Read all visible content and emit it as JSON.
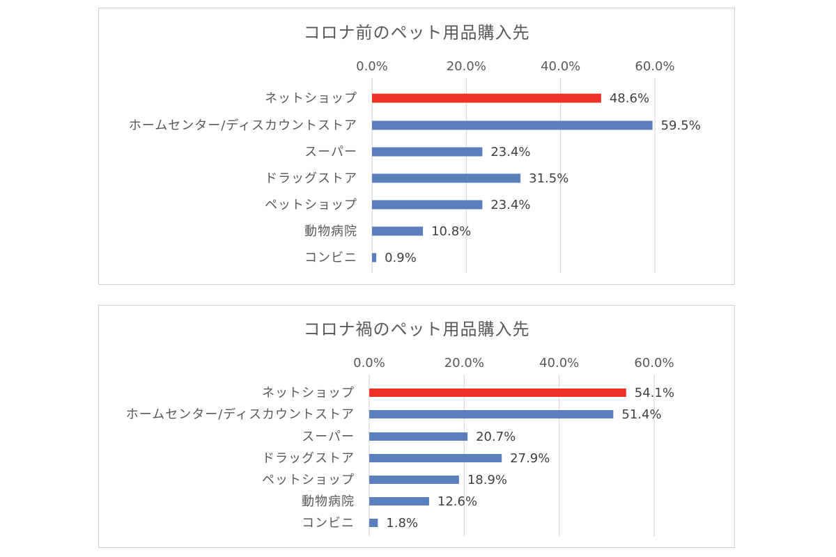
{
  "colors": {
    "highlight": "#ee3124",
    "bar": "#5b7fbd"
  },
  "chart_data": [
    {
      "type": "bar",
      "orientation": "horizontal",
      "title": "コロナ前のペット用品購入先",
      "categories": [
        "ネットショップ",
        "ホームセンター/ディスカウントストア",
        "スーパー",
        "ドラッグストア",
        "ペットショップ",
        "動物病院",
        "コンビニ"
      ],
      "values": [
        48.6,
        59.5,
        23.4,
        31.5,
        23.4,
        10.8,
        0.9
      ],
      "value_labels": [
        "48.6%",
        "59.5%",
        "23.4%",
        "31.5%",
        "23.4%",
        "10.8%",
        "0.9%"
      ],
      "highlight_index": 0,
      "xlim": [
        0,
        60
      ],
      "xticks": [
        0,
        20,
        40,
        60
      ],
      "xtick_labels": [
        "0.0%",
        "20.0%",
        "40.0%",
        "60.0%"
      ],
      "grid": true,
      "xlabel": "",
      "ylabel": ""
    },
    {
      "type": "bar",
      "orientation": "horizontal",
      "title": "コロナ禍のペット用品購入先",
      "categories": [
        "ネットショップ",
        "ホームセンター/ディスカウントストア",
        "スーパー",
        "ドラッグストア",
        "ペットショップ",
        "動物病院",
        "コンビニ"
      ],
      "values": [
        54.1,
        51.4,
        20.7,
        27.9,
        18.9,
        12.6,
        1.8
      ],
      "value_labels": [
        "54.1%",
        "51.4%",
        "20.7%",
        "27.9%",
        "18.9%",
        "12.6%",
        "1.8%"
      ],
      "highlight_index": 0,
      "xlim": [
        0,
        60
      ],
      "xticks": [
        0,
        20,
        40,
        60
      ],
      "xtick_labels": [
        "0.0%",
        "20.0%",
        "40.0%",
        "60.0%"
      ],
      "grid": true,
      "xlabel": "",
      "ylabel": ""
    }
  ]
}
